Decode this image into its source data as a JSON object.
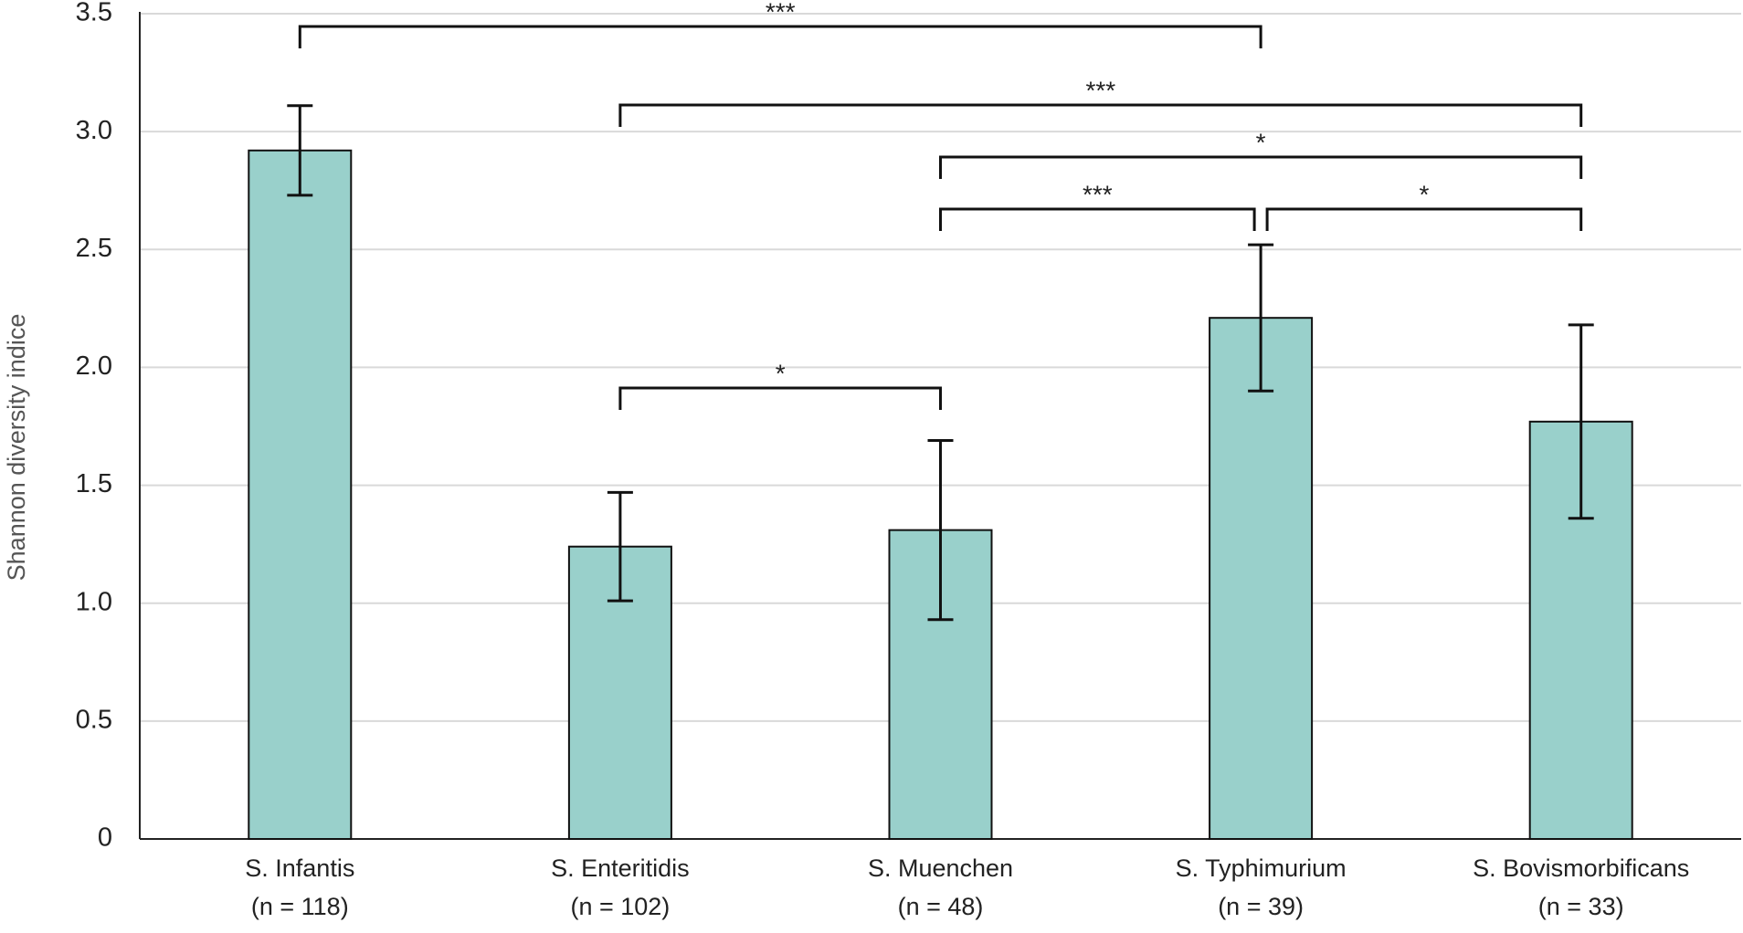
{
  "chart_data": {
    "type": "bar",
    "y_label": "Shannon diversity indice",
    "categories": [
      "S. Infantis",
      "S. Enteritidis",
      "S. Muenchen",
      "S. Typhimurium",
      "S. Bovismorbificans"
    ],
    "category_notes": [
      "(n = 118)",
      "(n = 102)",
      "(n = 48)",
      "(n = 39)",
      "(n = 33)"
    ],
    "values": [
      2.92,
      1.24,
      1.31,
      2.21,
      1.77
    ],
    "errors": [
      0.19,
      0.23,
      0.38,
      0.31,
      0.41
    ],
    "color": "#99d0cb",
    "ylim": [
      0,
      3.5
    ],
    "yticks": [
      0,
      0.5,
      {
        "value": 1,
        "label": "1.0"
      },
      1.5,
      {
        "value": 2,
        "label": "2.0"
      },
      2.5,
      {
        "value": 3,
        "label": "3.0"
      },
      3.5
    ],
    "grid": true,
    "annotations": [
      {
        "from": 0,
        "to": 3,
        "label": "***"
      },
      {
        "from": 1,
        "to": 4,
        "label": "***"
      },
      {
        "from": 2,
        "to": 4,
        "label": "*"
      },
      {
        "from": 2,
        "to": 3,
        "label": "***"
      },
      {
        "from": 3,
        "to": 4,
        "label": "*"
      },
      {
        "from": 1,
        "to": 2,
        "label": "*"
      }
    ]
  }
}
